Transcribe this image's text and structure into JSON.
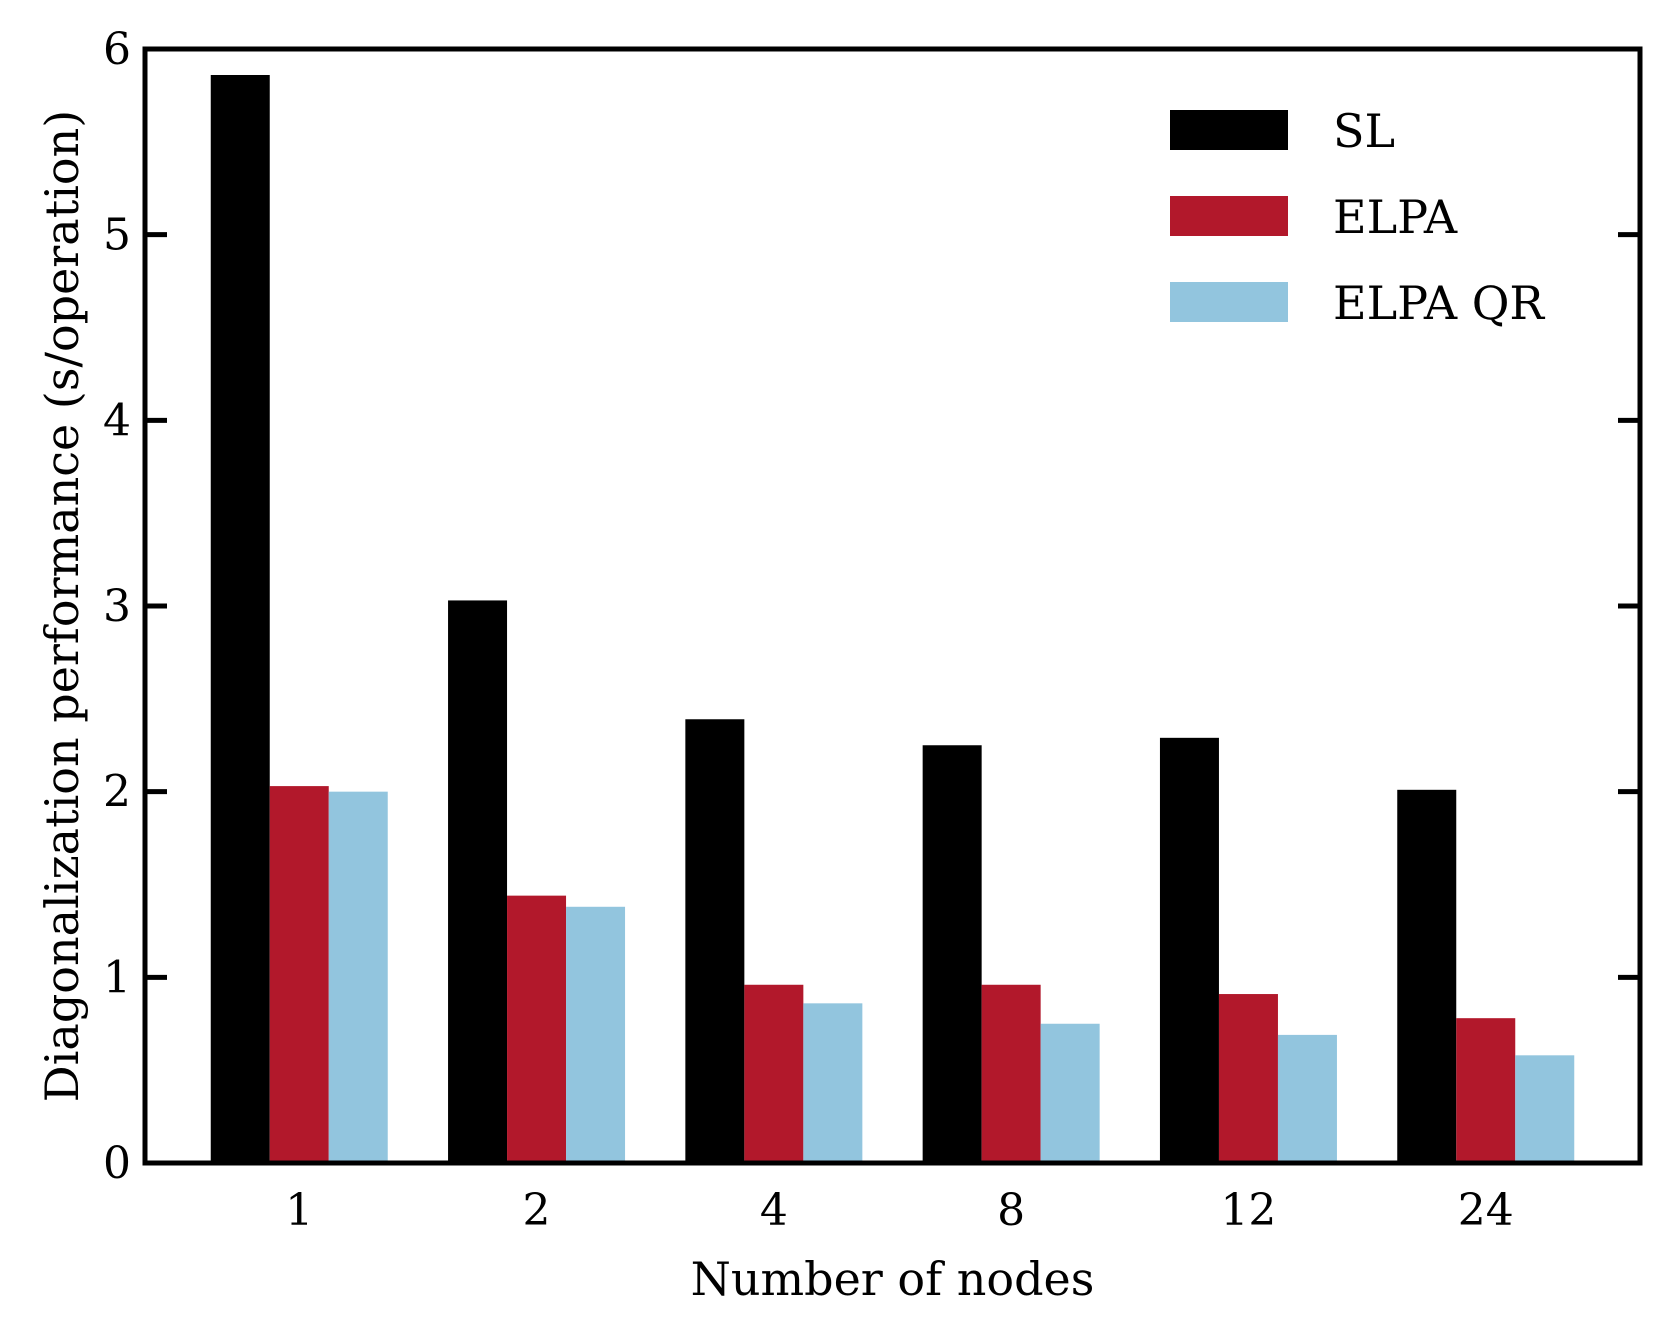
{
  "chart_data": {
    "type": "bar",
    "title": "",
    "xlabel": "Number of nodes",
    "ylabel": "Diagonalization performance (s/operation)",
    "categories": [
      "1",
      "2",
      "4",
      "8",
      "12",
      "24"
    ],
    "ylim": [
      0,
      6
    ],
    "yticks": [
      "0",
      "1",
      "2",
      "3",
      "4",
      "5",
      "6"
    ],
    "grid": false,
    "legend_position": "top-right",
    "series": [
      {
        "name": "SL",
        "color": "#000000",
        "values": [
          5.86,
          3.03,
          2.39,
          2.25,
          2.29,
          2.01
        ]
      },
      {
        "name": "ELPA",
        "color": "#b2182b",
        "values": [
          2.03,
          1.44,
          0.96,
          0.96,
          0.91,
          0.78
        ]
      },
      {
        "name": "ELPA QR",
        "color": "#92c5de",
        "values": [
          2.0,
          1.38,
          0.86,
          0.75,
          0.69,
          0.58
        ]
      }
    ]
  }
}
